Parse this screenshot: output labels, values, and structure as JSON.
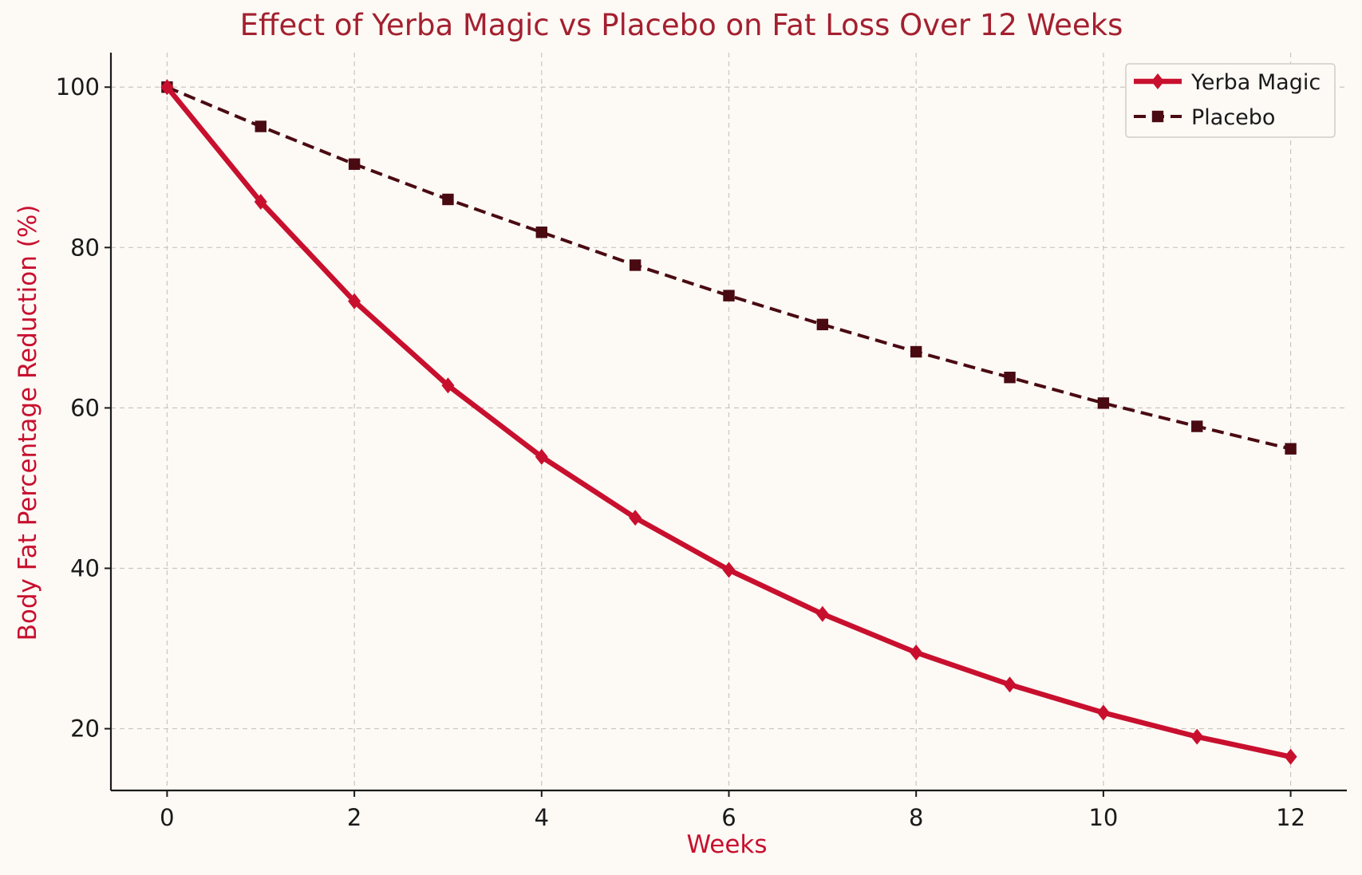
{
  "chart_data": {
    "type": "line",
    "title": "Effect of Yerba Magic vs Placebo on Fat Loss Over 12 Weeks",
    "xlabel": "Weeks",
    "ylabel": "Body Fat Percentage Reduction (%)",
    "x": [
      0,
      1,
      2,
      3,
      4,
      5,
      6,
      7,
      8,
      9,
      10,
      11,
      12
    ],
    "xlim": [
      -0.6,
      12.6
    ],
    "ylim": [
      12.3,
      104.3
    ],
    "xticks": [
      0,
      2,
      4,
      6,
      8,
      10,
      12
    ],
    "yticks": [
      20,
      40,
      60,
      80,
      100
    ],
    "grid": true,
    "legend_position": "top-right",
    "series": [
      {
        "name": "Yerba Magic",
        "color": "#c8102e",
        "marker": "diamond",
        "linestyle": "solid",
        "values": [
          100,
          85.7,
          73.3,
          62.8,
          53.9,
          46.3,
          39.8,
          34.3,
          29.5,
          25.5,
          22.0,
          19.0,
          16.5
        ]
      },
      {
        "name": "Placebo",
        "color": "#4a0a12",
        "marker": "square",
        "linestyle": "dashed",
        "values": [
          100,
          95.1,
          90.4,
          86.0,
          81.9,
          77.8,
          74.0,
          70.4,
          67.0,
          63.8,
          60.6,
          57.7,
          54.9
        ]
      }
    ]
  }
}
